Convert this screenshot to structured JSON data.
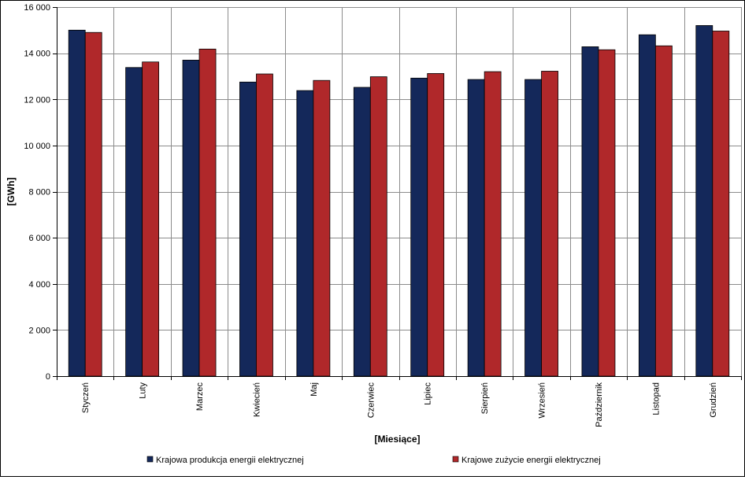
{
  "chart_data": {
    "type": "bar",
    "title": "",
    "xlabel": "[Miesiące]",
    "ylabel": "[GWh]",
    "ylim": [
      0,
      16000
    ],
    "yticks": [
      0,
      2000,
      4000,
      6000,
      8000,
      10000,
      12000,
      14000,
      16000
    ],
    "ytick_labels": [
      "0",
      "2 000",
      "4 000",
      "6 000",
      "8 000",
      "10 000",
      "12 000",
      "14 000",
      "16 000"
    ],
    "grid": true,
    "legend_position": "bottom",
    "categories": [
      "Styczeń",
      "Luty",
      "Marzec",
      "Kwiecień",
      "Maj",
      "Czerwiec",
      "Lipiec",
      "Sierpień",
      "Wrzesień",
      "Październik",
      "Listopad",
      "Grudzień"
    ],
    "series": [
      {
        "name": "Krajowa produkcja energii elektrycznej",
        "color": "#14285a",
        "values": [
          15000,
          13380,
          13700,
          12750,
          12380,
          12520,
          12920,
          12860,
          12860,
          14280,
          14800,
          15200
        ]
      },
      {
        "name": "Krajowe zużycie energii elektrycznej",
        "color": "#b0282a",
        "values": [
          14900,
          13620,
          14180,
          13100,
          12820,
          12980,
          13120,
          13200,
          13220,
          14150,
          14320,
          14960
        ]
      }
    ]
  }
}
